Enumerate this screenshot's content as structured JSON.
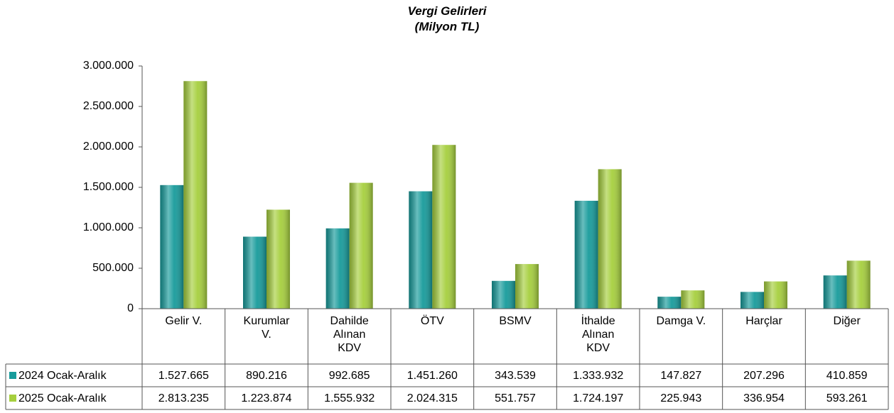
{
  "chart_data": {
    "type": "bar",
    "title": "Vergi Gelirleri",
    "subtitle": "(Milyon TL)",
    "categories": [
      "Gelir V.",
      "Kurumlar V.",
      "Dahilde Alınan KDV",
      "ÖTV",
      "BSMV",
      "İthalde Alınan KDV",
      "Damga V.",
      "Harçlar",
      "Diğer"
    ],
    "series": [
      {
        "name": "2024 Ocak-Aralık",
        "color": "#179b9b",
        "values": [
          1527665,
          890216,
          992685,
          1451260,
          343539,
          1333932,
          147827,
          207296,
          410859
        ],
        "value_labels": [
          "1.527.665",
          "890.216",
          "992.685",
          "1.451.260",
          "343.539",
          "1.333.932",
          "147.827",
          "207.296",
          "410.859"
        ]
      },
      {
        "name": "2025 Ocak-Aralık",
        "color": "#a6cf3e",
        "values": [
          2813235,
          1223874,
          1555932,
          2024315,
          551757,
          1724197,
          225943,
          336954,
          593261
        ],
        "value_labels": [
          "2.813.235",
          "1.223.874",
          "1.555.932",
          "2.024.315",
          "551.757",
          "1.724.197",
          "225.943",
          "336.954",
          "593.261"
        ]
      }
    ],
    "ylim": [
      0,
      3000000
    ],
    "yticks": [
      0,
      {
        "value": 500000,
        "label": "500.000"
      },
      {
        "value": 1000000,
        "label": "1.000.000"
      },
      {
        "value": 1500000,
        "label": "1.500.000"
      },
      {
        "value": 2000000,
        "label": "2.000.000"
      },
      {
        "value": 2500000,
        "label": "2.500.000"
      },
      {
        "value": 3000000,
        "label": "3.000.000"
      }
    ]
  }
}
